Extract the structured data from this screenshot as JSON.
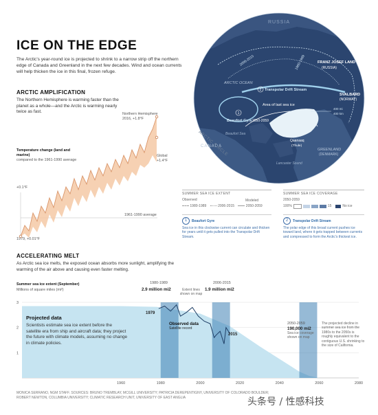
{
  "header": {
    "title": "ICE ON THE EDGE",
    "lede": "The Arctic's year-round ice is projected to shrink to a narrow strip off the northern edge of Canada and Greenland in the next few decades. Wind and ocean currents will help thicken the ice in this final, frozen refuge."
  },
  "amplification": {
    "heading": "ARCTIC AMPLIFICATION",
    "body": "The Northern Hemisphere is warming faster than the planet as a whole—and the Arctic is warming nearly twice as fast.",
    "temp_label_bold": "Temperature change (land and marine)",
    "temp_label": "compared to the 1961-1990 average",
    "nh_label_1": "Northern Hemisphere",
    "nh_label_2": "2016, +1.8°F",
    "global_label_1": "Global",
    "global_label_2": "+1.4°F",
    "plus01": "+0.1°F",
    "avg_label": "1961-1990 average",
    "start_label": "1979, +0.01°F"
  },
  "map": {
    "russia": "RUSSIA",
    "arctic_ocean": "ARCTIC OCEAN",
    "franz": "FRANZ JOSEF LAND",
    "franz_sub": "(RUSSIA)",
    "svalbard": "SVALBARD",
    "svalbard_sub": "(NORWAY)",
    "transpolar": "Transpolar Drift Stream",
    "beaufort_gyre": "Beaufort Gyre",
    "beaufort_sea": "Beaufort Sea",
    "area_last_ice": "Area of last sea ice",
    "canada": "CANADA",
    "greenland": "GREENLAND",
    "greenland_sub": "(DENMARK)",
    "lancaster": "Lancaster Sound",
    "qaanaaq": "Qaanaaq",
    "qaanaaq_sub": "(Thule)",
    "arctic_circle": "ARCTIC CIRCLE",
    "label_2050": "2050-2059",
    "label_2006": "2006-2015",
    "label_1980": "1980-1989",
    "scale_1": "400 mi",
    "scale_2": "400 km",
    "marker_1": "1",
    "marker_2": "2"
  },
  "legend": {
    "extent_title": "SUMMER SEA ICE EXTENT",
    "observed": "Observed",
    "modeled": "Modeled",
    "e1": "1980-1989",
    "e2": "2006-2015",
    "e3": "2050-2059",
    "coverage_title": "SUMMER SEA ICE COVERAGE",
    "coverage_years": "2050-2059",
    "coverage_hi": "100%",
    "coverage_lo": "15",
    "no_ice": "No ice",
    "n1": "1",
    "n2": "2",
    "beaufort_title": "Beaufort Gyre",
    "beaufort_body": "Sea ice in this clockwise current can circulate and thicken for years until it gets pulled into the Transpolar Drift Stream.",
    "transpolar_title": "Transpolar Drift Stream",
    "transpolar_body": "The polar edge of this broad current pushes ice toward land, where it gets trapped between currents and compressed to form the Arctic's thickest ice."
  },
  "melt": {
    "heading": "ACCELERATING MELT",
    "body": "As Arctic sea ice melts, the exposed ocean absorbs more sunlight, amplifying the warming of the air above and causing even faster melting.",
    "y_title": "Summer sea ice extent (September)",
    "y_sub": "Millions of square miles (mi²)",
    "label_1980_years": "1980-1989",
    "label_1980_val": "2.9 million mi2",
    "label_2006_years": "2006-2015",
    "label_2006_val": "1.9 million mi2",
    "extent_shown": "Extent lines shown on map",
    "label_1979": "1979",
    "label_2015": "2015",
    "observed_title": "Observed data",
    "observed_sub": "Satellite record",
    "projected_title": "Projected data",
    "projected_body": "Scientists estimate sea ice extent before the satellite era from ship and aircraft data; they project the future with climate models, assuming no change in climate policies.",
    "label_2050_years": "2050-2059",
    "label_2050_val": "190,000 mi2",
    "label_2050_note": "Sea ice coverage shown on map",
    "side_note": "The projected decline in summer sea ice from the 1980s to the 2050s is roughly equivalent to the contiguous U.S. shrinking to the size of California."
  },
  "footer": {
    "sources_1": "MONICA SERRANO, NGM STAFF. SOURCES: BRUNO TREMBLAY, MCGILL UNIVERSITY; PATRICIA DEREPENTIGNY, UNIVERSITY OF COLORADO BOULDER;",
    "sources_2": "ROBERT NEWTON, COLUMBIA UNIVERSITY; CLIMATIC RESEARCH UNIT, UNIVERSITY OF EAST ANGLIA",
    "watermark": "头条号 / 性感科技"
  },
  "chart_data": [
    {
      "type": "area",
      "title": "",
      "xlabel": "",
      "ylabel": "Temperature change (land and marine)",
      "series": [
        {
          "name": "Northern Hemisphere",
          "x": [
            1979,
            2016
          ],
          "values": [
            0.01,
            1.8
          ]
        },
        {
          "name": "Global",
          "x": [
            2016
          ],
          "values": [
            1.4
          ]
        }
      ],
      "annotations": [
        "+0.1°F",
        "1961-1990 average"
      ],
      "grid": false
    },
    {
      "type": "area",
      "title": "Summer sea ice extent (September)",
      "ylabel": "Millions of square miles (mi²)",
      "x_ticks": [
        1960,
        1980,
        2000,
        2020,
        2040,
        2060,
        2080
      ],
      "y_ticks": [
        1,
        2,
        3
      ],
      "ylim": [
        0,
        3
      ],
      "xlim": [
        1910,
        2080
      ],
      "series": [
        {
          "name": "Projected data",
          "x": [
            1910,
            1940,
            1960,
            1978,
            2000,
            2015,
            2030,
            2045,
            2050,
            2055,
            2060,
            2070,
            2080
          ],
          "values": [
            2.85,
            2.85,
            2.85,
            2.82,
            2.55,
            2.05,
            1.25,
            0.5,
            0.25,
            0.08,
            0.0,
            0.0,
            0.0
          ]
        },
        {
          "name": "Observed data",
          "x": [
            1979,
            1982,
            1985,
            1988,
            1990,
            1993,
            1996,
            1999,
            2002,
            2005,
            2007,
            2008,
            2010,
            2012,
            2013,
            2015
          ],
          "values": [
            2.75,
            2.85,
            2.65,
            2.9,
            2.45,
            2.6,
            2.8,
            2.45,
            2.25,
            2.15,
            1.6,
            1.7,
            1.85,
            1.35,
            2.0,
            1.75
          ]
        }
      ],
      "annotations": [
        {
          "years": "1980-1989",
          "value": "2.9 million mi2"
        },
        {
          "years": "2006-2015",
          "value": "1.9 million mi2"
        },
        {
          "years": "2050-2059",
          "value": "190,000 mi2"
        }
      ],
      "grid": true
    }
  ],
  "colors": {
    "map_ocean": "#2b456f",
    "map_land": "#3d5a85",
    "ice_fill": "#c6e4f1",
    "observed_band": "#3f82b4",
    "temp_fill": "#f4c9a6",
    "temp_line": "#d9956a",
    "label_blue": "#2e6aa8"
  }
}
